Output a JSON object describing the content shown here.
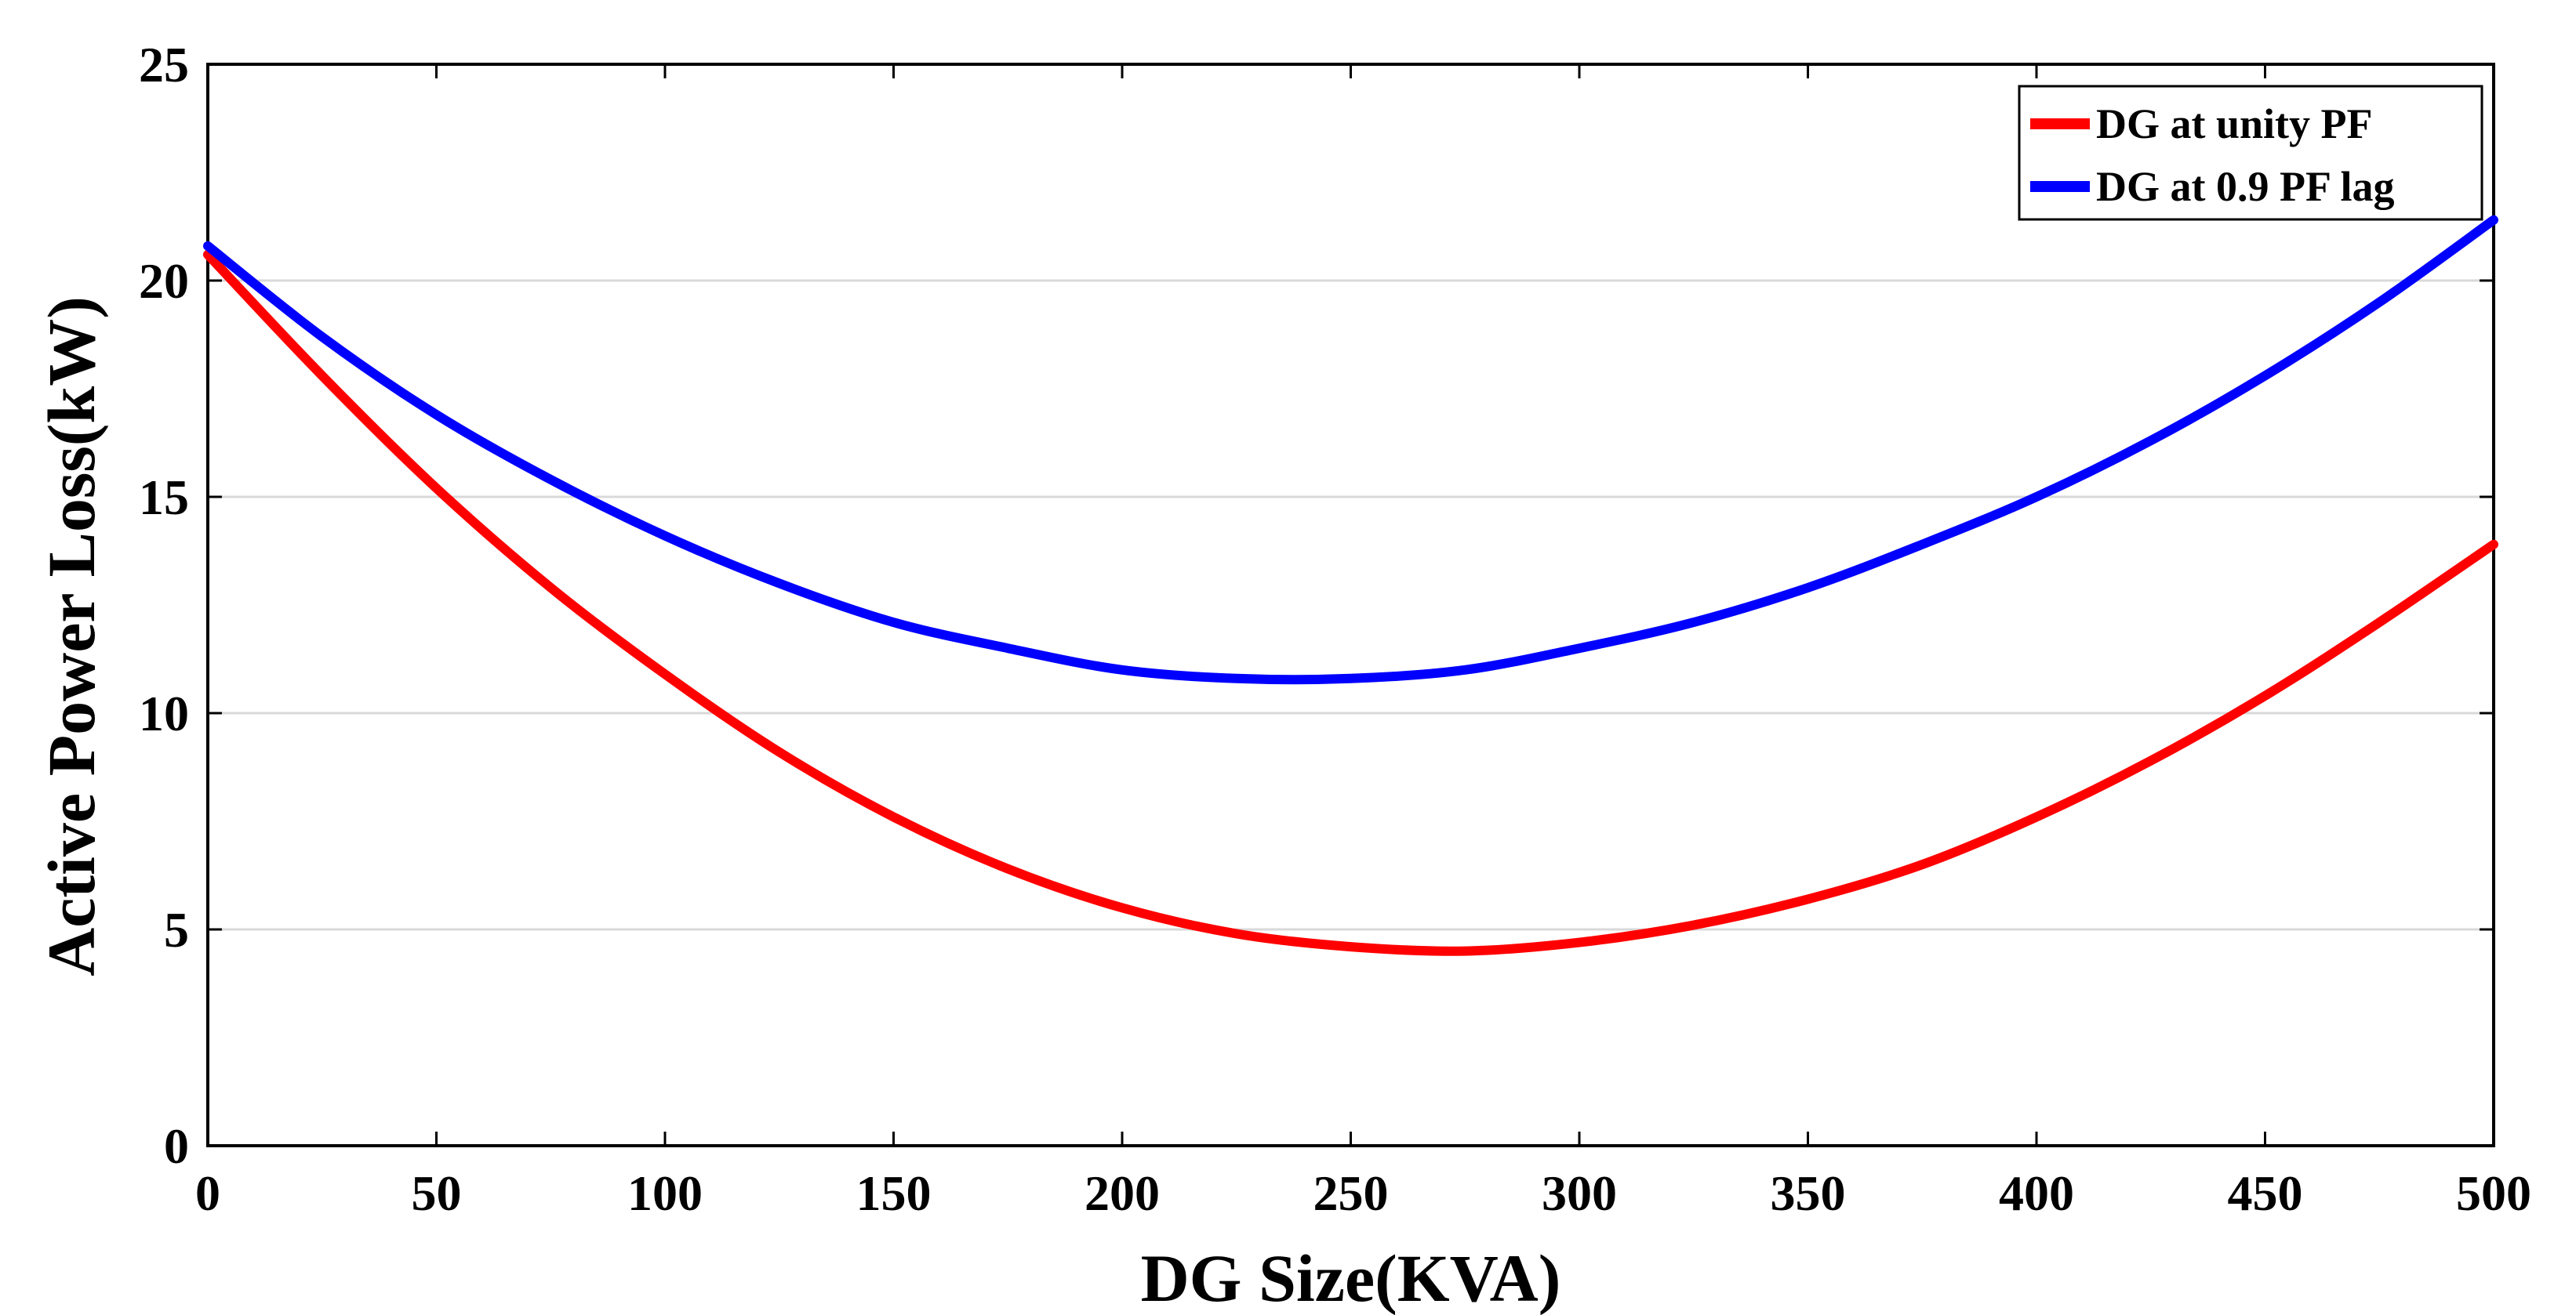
{
  "chart_data": {
    "type": "line",
    "title": "",
    "xlabel": "DG Size(KVA)",
    "ylabel": "Active Power Loss(kW)",
    "xlim": [
      0,
      500
    ],
    "ylim": [
      0,
      25
    ],
    "xticks": [
      0,
      50,
      100,
      150,
      200,
      250,
      300,
      350,
      400,
      450,
      500
    ],
    "yticks": [
      0,
      5,
      10,
      15,
      20,
      25
    ],
    "xtick_labels": [
      "0",
      "50",
      "100",
      "150",
      "200",
      "250",
      "300",
      "350",
      "400",
      "450",
      "500"
    ],
    "ytick_labels": [
      "0",
      "5",
      "10",
      "15",
      "20",
      "25"
    ],
    "grid": "horizontal",
    "legend_position": "top-right",
    "x": [
      0,
      25,
      50,
      75,
      100,
      125,
      150,
      175,
      200,
      225,
      250,
      275,
      300,
      325,
      350,
      375,
      400,
      425,
      450,
      475,
      500
    ],
    "series": [
      {
        "name": "DG at unity PF",
        "color": "#ff0000",
        "values": [
          20.6,
          17.8,
          15.2,
          12.9,
          10.9,
          9.1,
          7.6,
          6.4,
          5.5,
          4.9,
          4.6,
          4.5,
          4.7,
          5.1,
          5.7,
          6.5,
          7.6,
          8.9,
          10.4,
          12.1,
          13.9
        ]
      },
      {
        "name": "DG at 0.9 PF lag",
        "color": "#0000ff",
        "values": [
          20.8,
          18.7,
          16.9,
          15.4,
          14.1,
          13.0,
          12.1,
          11.5,
          11.0,
          10.8,
          10.8,
          11.0,
          11.5,
          12.1,
          12.9,
          13.9,
          15.0,
          16.3,
          17.8,
          19.5,
          21.4
        ]
      }
    ]
  }
}
